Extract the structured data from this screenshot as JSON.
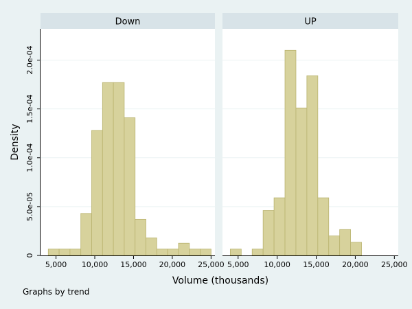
{
  "chart_data": {
    "type": "bar",
    "subtype": "histogram",
    "ylabel": "Density",
    "xlabel": "Volume (thousands)",
    "note": "Graphs by trend",
    "bar_fill": "#d7d29c",
    "bar_edge": "#b9b36f",
    "panel_bg": "#ffffff",
    "strip_bg": "#d8e3e8",
    "grid": true,
    "xlim": [
      3000,
      25500
    ],
    "ylim": [
      0,
      0.000232
    ],
    "xticks": [
      5000,
      10000,
      15000,
      20000,
      25000
    ],
    "xtick_labels": [
      "5,000",
      "10,000",
      "15,000",
      "20,000",
      "25,000"
    ],
    "yticks": [
      0,
      5e-05,
      0.0001,
      0.00015,
      0.0002
    ],
    "ytick_labels": [
      "0",
      "5.0e-05",
      "1.0e-04",
      "1.5e-04",
      "2.0e-04"
    ],
    "panels": [
      {
        "title": "Down",
        "bin_edges": [
          4000,
          5400,
          6800,
          8200,
          9600,
          11000,
          12400,
          13800,
          15200,
          16600,
          18000,
          19400,
          20800,
          22200,
          23600,
          25000
        ],
        "values": [
          6.5e-06,
          6.5e-06,
          6.5e-06,
          4.3e-05,
          0.000128,
          0.000177,
          0.000177,
          0.000141,
          3.7e-05,
          1.8e-05,
          6.5e-06,
          6.5e-06,
          1.25e-05,
          6.5e-06,
          6.5e-06
        ]
      },
      {
        "title": "UP",
        "bin_edges": [
          4000,
          5400,
          6800,
          8200,
          9600,
          11000,
          12400,
          13800,
          15200,
          16600,
          18000,
          19400,
          20800,
          22200,
          23600,
          25000
        ],
        "values": [
          6.5e-06,
          0,
          6.5e-06,
          4.6e-05,
          5.9e-05,
          0.00021,
          0.000151,
          0.000184,
          5.9e-05,
          2e-05,
          2.65e-05,
          1.35e-05,
          0,
          0,
          0
        ]
      }
    ]
  }
}
